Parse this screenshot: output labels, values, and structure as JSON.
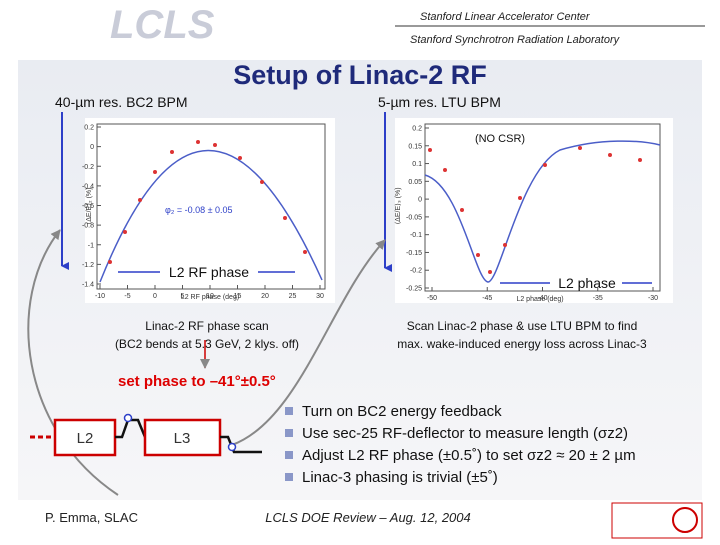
{
  "header": {
    "logo": "LCLS",
    "org1": "Stanford Linear Accelerator Center",
    "org2": "Stanford Synchrotron Radiation Laboratory"
  },
  "title": "Setup of Linac-2 RF",
  "left_label": "40-µm res. BC2 BPM",
  "right_label": "5-µm res. LTU BPM",
  "plots": [
    {
      "xticks": [
        -10,
        -5,
        0,
        5,
        10,
        15,
        20,
        25,
        30
      ],
      "yticks": [
        0.2,
        0,
        -0.2,
        -0.4,
        -0.6,
        -0.8,
        -1,
        -1.2,
        -1.4
      ],
      "xlabel": "L2 RF phase (deg)",
      "ylabel": "⟨ΔE/E⟩₂ (%)",
      "annotation": "φ₂ = -0.08 ± 0.05",
      "callout": "L2 RF phase",
      "caption1": "Linac-2 RF phase scan",
      "caption2": "(BC2 bends at 5.3 GeV, 2 klys. off)"
    },
    {
      "xticks": [
        -50,
        -45,
        -40,
        -35,
        -30
      ],
      "yticks": [
        0.2,
        0.15,
        0.1,
        0.05,
        0,
        -0.05,
        -0.1,
        -0.15,
        -0.2,
        -0.25
      ],
      "xlabel": "L2 phase (deg)",
      "ylabel": "⟨ΔE/E⟩₃ (%)",
      "annotation": "(NO CSR)",
      "callout": "L2 phase",
      "caption1": "Scan Linac-2 phase & use LTU BPM to find",
      "caption2": "max. wake-induced energy loss across Linac-3"
    }
  ],
  "set_phase": "set phase to –41°±0.5°",
  "diagram": {
    "box1": "L2",
    "box2": "L3"
  },
  "bullets": [
    "Turn on BC2 energy feedback",
    "Use sec-25 RF-deflector to measure length (σz2)",
    "Adjust L2 RF phase (±0.5˚) to set σz2 ≈ 20 ± 2 µm",
    "Linac-3 phasing is trivial (±5˚)"
  ],
  "footer": {
    "author": "P. Emma, SLAC",
    "event": "LCLS DOE Review – Aug. 12, 2004"
  }
}
